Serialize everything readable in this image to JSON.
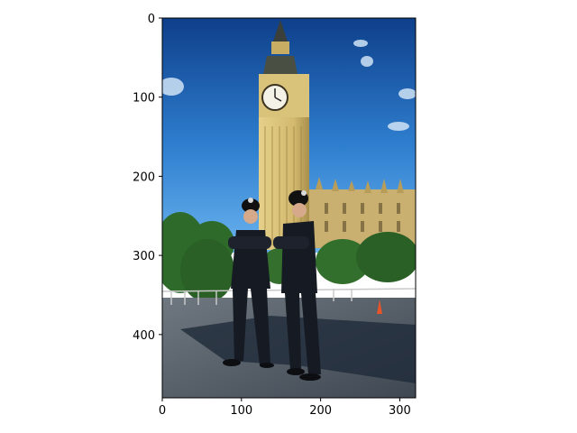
{
  "axes": {
    "x_ticks": [
      {
        "value": 0,
        "label": "0"
      },
      {
        "value": 100,
        "label": "100"
      },
      {
        "value": 200,
        "label": "200"
      },
      {
        "value": 300,
        "label": "300"
      }
    ],
    "y_ticks": [
      {
        "value": 0,
        "label": "0"
      },
      {
        "value": 100,
        "label": "100"
      },
      {
        "value": 200,
        "label": "200"
      },
      {
        "value": 300,
        "label": "300"
      },
      {
        "value": 400,
        "label": "400"
      }
    ],
    "x_range": [
      0,
      320
    ],
    "y_range": [
      0,
      480
    ]
  },
  "image": {
    "description_icons": [
      "clock-tower",
      "parliament-building",
      "trees",
      "two-police-officers",
      "blue-sky",
      "traffic-cone"
    ],
    "colors": {
      "sky_top": "#0e3f8a",
      "sky_bottom": "#4a9ee6",
      "tower": "#d7c07a",
      "tower_shadow": "#a88f4c",
      "building": "#c9b070",
      "trees": "#2e6a2a",
      "ground": "#56606a",
      "shadow": "#1f2a3a",
      "uniform": "#161a22"
    }
  }
}
